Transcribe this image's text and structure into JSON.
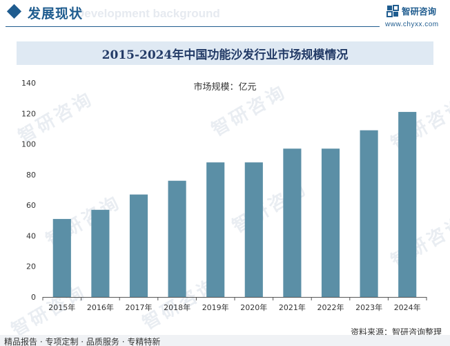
{
  "header": {
    "section_title": "发展现状",
    "section_title_en": "Development background",
    "brand_name": "智研咨询",
    "brand_url": "www.chyxx.com"
  },
  "watermark_text": "智研咨询",
  "footer": {
    "source": "资料来源：智研咨询整理",
    "slogan": "精品报告 · 专项定制 · 品质服务 · 专精特新"
  },
  "colors": {
    "bar": "#5b8fa6",
    "brand": "#1f5c8f",
    "title_band": "#dfe9f3"
  },
  "chart_data": {
    "type": "bar",
    "title": "2015-2024年中国功能沙发行业市场规模情况",
    "series_label": "市场规模：亿元",
    "categories": [
      "2015年",
      "2016年",
      "2017年",
      "2018年",
      "2019年",
      "2020年",
      "2021年",
      "2022年",
      "2023年",
      "2024年"
    ],
    "values": [
      51,
      57,
      67,
      76,
      88,
      88,
      97,
      97,
      109,
      121
    ],
    "yticks": [
      0,
      20,
      40,
      60,
      80,
      100,
      120,
      140
    ],
    "ylim": [
      0,
      140
    ],
    "grid": false,
    "legend": "top-center"
  }
}
